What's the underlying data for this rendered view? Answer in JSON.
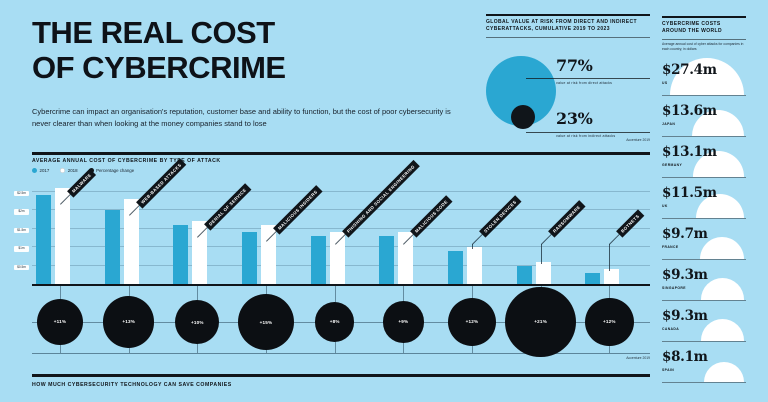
{
  "colors": {
    "background": "#A8DDF3",
    "teal": "#2AA7D2",
    "black": "#10151A",
    "white": "#FFFFFF"
  },
  "header": {
    "title_line1": "THE REAL COST",
    "title_line2": "OF CYBERCRIME",
    "intro": "Cybercrime can impact an organisation's reputation, customer base and ability to function, but the cost of poor cybersecurity is never clearer than when looking at the money companies stand to lose"
  },
  "risk_panel": {
    "heading": "Global value at risk from direct and indirect cyberattacks, cumulative 2019 to 2023",
    "direct_value": "77%",
    "direct_label": "value at risk from direct attacks",
    "indirect_value": "23%",
    "indirect_label": "value at risk from indirect attacks",
    "source": "Accenture 2019"
  },
  "world_panel": {
    "heading": "Cybercrime costs around the world",
    "subheading": "Average annual cost of cyber attacks for companies in each country, in dollars"
  },
  "attack_panel": {
    "heading": "Average annual cost of cybercrime by type of attack",
    "legend": [
      {
        "label": "2017",
        "swatch": "teal"
      },
      {
        "label": "2018",
        "swatch": "white"
      },
      {
        "label": "Percentage change",
        "swatch": "black"
      }
    ],
    "source": "Accenture 2019"
  },
  "bottom_panel": {
    "heading": "How much cybersecurity technology can save companies"
  },
  "chart_data": [
    {
      "id": "value-at-risk",
      "type": "pie",
      "title": "Global value at risk from direct and indirect cyberattacks, cumulative 2019 to 2023",
      "slices": [
        {
          "label": "value at risk from direct attacks",
          "value": 77
        },
        {
          "label": "value at risk from indirect attacks",
          "value": 23
        }
      ],
      "legend_position": "right"
    },
    {
      "id": "attack-types",
      "type": "bar",
      "title": "Average annual cost of cybercrime by type of attack ($m)",
      "categories": [
        "Malware",
        "Web-based attacks",
        "Denial of service",
        "Malicious insiders",
        "Phishing and social engineering",
        "Malicious code",
        "Stolen devices",
        "Ransomware",
        "Botnets"
      ],
      "series": [
        {
          "name": "2017",
          "values": [
            2.4,
            2.0,
            1.6,
            1.4,
            1.3,
            1.3,
            0.9,
            0.5,
            0.3
          ]
        },
        {
          "name": "2018",
          "values": [
            2.6,
            2.3,
            1.7,
            1.6,
            1.4,
            1.4,
            1.0,
            0.6,
            0.4
          ]
        }
      ],
      "percentage_change": [
        11,
        13,
        10,
        15,
        8,
        9,
        12,
        21,
        12
      ],
      "percentage_change_labels": [
        "+11%",
        "+13%",
        "+10%",
        "+15%",
        "+8%",
        "+9%",
        "+12%",
        "+21%",
        "+12%"
      ],
      "ylim": [
        0,
        2.65
      ],
      "ytick_values": [
        0.5,
        1.0,
        1.5,
        2.0,
        2.5
      ],
      "ytick_labels": [
        "$0.5m",
        "$1m",
        "$1.5m",
        "$2m",
        "$2.5m"
      ],
      "grid": true,
      "legend_position": "top-left"
    },
    {
      "id": "world-costs",
      "type": "bar",
      "title": "Cybercrime costs around the world ($m, average annual cost)",
      "categories": [
        "US",
        "Japan",
        "Germany",
        "UK",
        "France",
        "Singapore",
        "Canada",
        "Spain"
      ],
      "values": [
        27.4,
        13.6,
        13.1,
        11.5,
        9.7,
        9.3,
        9.3,
        8.1
      ],
      "value_labels": [
        "$27.4m",
        "$13.6m",
        "$13.1m",
        "$11.5m",
        "$9.7m",
        "$9.3m",
        "$9.3m",
        "$8.1m"
      ]
    }
  ]
}
